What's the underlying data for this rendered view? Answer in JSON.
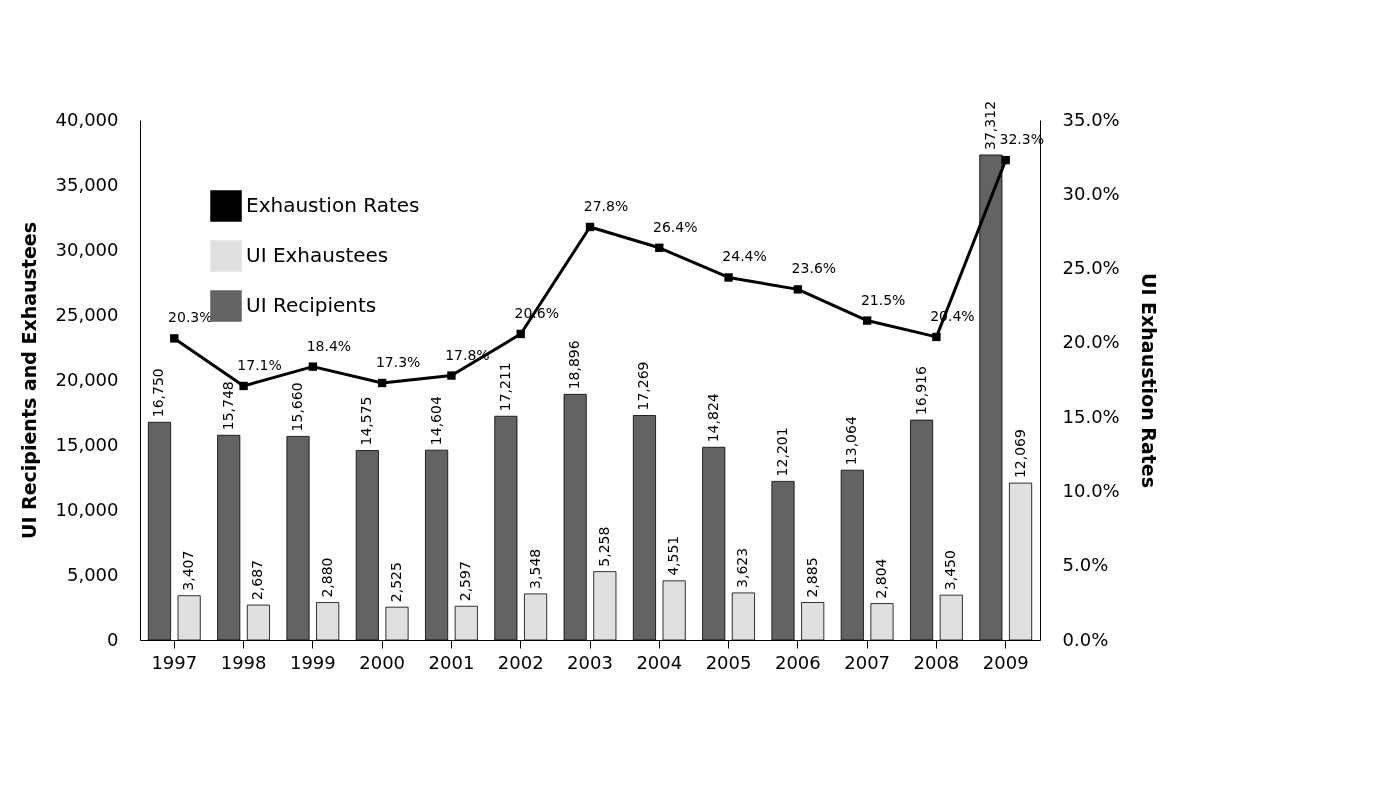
{
  "chart_data": {
    "type": "bar",
    "ylabel": "UI Recipients and Exhaustees",
    "y2label": "UI Exhaustion Rates",
    "categories": [
      "1997",
      "1998",
      "1999",
      "2000",
      "2001",
      "2002",
      "2003",
      "2004",
      "2005",
      "2006",
      "2007",
      "2008",
      "2009"
    ],
    "ylim": [
      0,
      40000
    ],
    "yticks": [
      {
        "value": 0,
        "label": "0"
      },
      {
        "value": 5000,
        "label": "5,000"
      },
      {
        "value": 10000,
        "label": "10,000"
      },
      {
        "value": 15000,
        "label": "15,000"
      },
      {
        "value": 20000,
        "label": "20,000"
      },
      {
        "value": 25000,
        "label": "25,000"
      },
      {
        "value": 30000,
        "label": "30,000"
      },
      {
        "value": 35000,
        "label": "35,000"
      },
      {
        "value": 40000,
        "label": "40,000"
      }
    ],
    "y2lim": [
      0,
      35
    ],
    "y2ticks": [
      {
        "value": 0,
        "label": "0.0%"
      },
      {
        "value": 5,
        "label": "5.0%"
      },
      {
        "value": 10,
        "label": "10.0%"
      },
      {
        "value": 15,
        "label": "15.0%"
      },
      {
        "value": 20,
        "label": "20.0%"
      },
      {
        "value": 25,
        "label": "25.0%"
      },
      {
        "value": 30,
        "label": "30.0%"
      },
      {
        "value": 35,
        "label": "35.0%"
      }
    ],
    "series": [
      {
        "name": "UI Recipients",
        "color": "#636363",
        "values": [
          16750,
          15748,
          15660,
          14575,
          14604,
          17211,
          18896,
          17269,
          14824,
          12201,
          13064,
          16916,
          37312
        ],
        "value_labels": [
          "16,750",
          "15,748",
          "15,660",
          "14,575",
          "14,604",
          "17,211",
          "18,896",
          "17,269",
          "14,824",
          "12,201",
          "13,064",
          "16,916",
          "37,312"
        ]
      },
      {
        "name": "UI Exhaustees",
        "color": "#e0e0e0",
        "values": [
          3407,
          2687,
          2880,
          2525,
          2597,
          3548,
          5258,
          4551,
          3623,
          2885,
          2804,
          3450,
          12069
        ],
        "value_labels": [
          "3,407",
          "2,687",
          "2,880",
          "2,525",
          "2,597",
          "3,548",
          "5,258",
          "4,551",
          "3,623",
          "2,885",
          "2,804",
          "3,450",
          "12,069"
        ]
      },
      {
        "name": "Exhaustion Rates",
        "type": "line",
        "axis": "y2",
        "color": "#000000",
        "marker": "square",
        "line_style": "solid",
        "values": [
          20.3,
          17.1,
          18.4,
          17.3,
          17.8,
          20.6,
          27.8,
          26.4,
          24.4,
          23.6,
          21.5,
          20.4,
          32.3
        ],
        "value_labels": [
          "20.3%",
          "17.1%",
          "18.4%",
          "17.3%",
          "17.8%",
          "20.6%",
          "27.8%",
          "26.4%",
          "24.4%",
          "23.6%",
          "21.5%",
          "20.4%",
          "32.3%"
        ]
      }
    ],
    "legend": "top left",
    "grid": false
  }
}
